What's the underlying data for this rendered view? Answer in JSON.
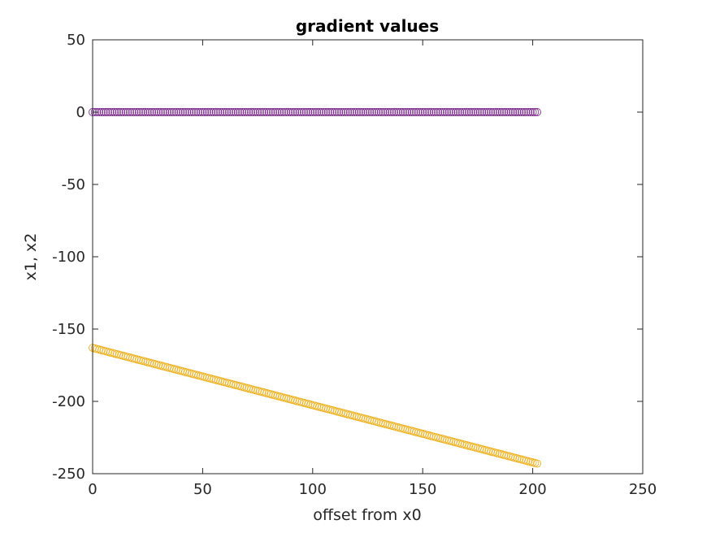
{
  "chart_data": {
    "type": "scatter",
    "title": "gradient values",
    "xlabel": "offset from x0",
    "ylabel": "x1, x2",
    "xlim": [
      0,
      250
    ],
    "ylim": [
      -250,
      50
    ],
    "xticks": [
      0,
      50,
      100,
      150,
      200,
      250
    ],
    "yticks": [
      50,
      0,
      -50,
      -100,
      -150,
      -200,
      -250
    ],
    "xtick_labels": [
      "0",
      "50",
      "100",
      "150",
      "200",
      "250"
    ],
    "ytick_labels": [
      "50",
      "0",
      "-50",
      "-100",
      "-150",
      "-200",
      "-250"
    ],
    "grid": false,
    "marker": "circle",
    "series": [
      {
        "color": "#7E2F8E",
        "x_start": 0,
        "x_end": 202,
        "x_step": 1,
        "y_start": 0,
        "y_end": 0
      },
      {
        "color": "#EDB120",
        "x_start": 0,
        "x_end": 202,
        "x_step": 1,
        "y_start": -163,
        "y_end": -243
      }
    ]
  }
}
